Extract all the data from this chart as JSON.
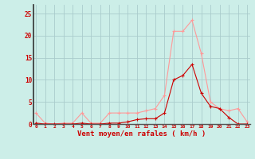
{
  "x": [
    0,
    1,
    2,
    3,
    4,
    5,
    6,
    7,
    8,
    9,
    10,
    11,
    12,
    13,
    14,
    15,
    16,
    17,
    18,
    19,
    20,
    21,
    22,
    23
  ],
  "rafales": [
    2.5,
    0.2,
    0.0,
    0.2,
    0.2,
    2.5,
    0.2,
    0.2,
    2.5,
    2.5,
    2.5,
    2.5,
    3.0,
    3.5,
    6.5,
    21.0,
    21.0,
    23.5,
    16.0,
    5.0,
    3.5,
    3.0,
    3.5,
    0.5
  ],
  "moyen": [
    0.2,
    0.0,
    0.0,
    0.0,
    0.0,
    0.2,
    0.0,
    0.0,
    0.2,
    0.2,
    0.5,
    1.0,
    1.2,
    1.2,
    2.5,
    10.0,
    11.0,
    13.5,
    7.0,
    4.0,
    3.5,
    1.5,
    0.0,
    0.0
  ],
  "bg_color": "#cceee8",
  "grid_color": "#aacccc",
  "line_color_rafales": "#ff9999",
  "line_color_moyen": "#cc0000",
  "xlabel": "Vent moyen/en rafales ( km/h )",
  "ylim": [
    0,
    27
  ],
  "yticks": [
    0,
    5,
    10,
    15,
    20,
    25
  ],
  "ytick_labels": [
    "0",
    "5",
    "10",
    "15",
    "20",
    "25"
  ],
  "xlabel_color": "#cc0000",
  "tick_color": "#cc0000",
  "spine_color": "#555555",
  "font_size_x": 4.5,
  "font_size_y": 5.5,
  "font_size_xlabel": 6.5,
  "line_width": 0.8,
  "marker_size": 3.0
}
